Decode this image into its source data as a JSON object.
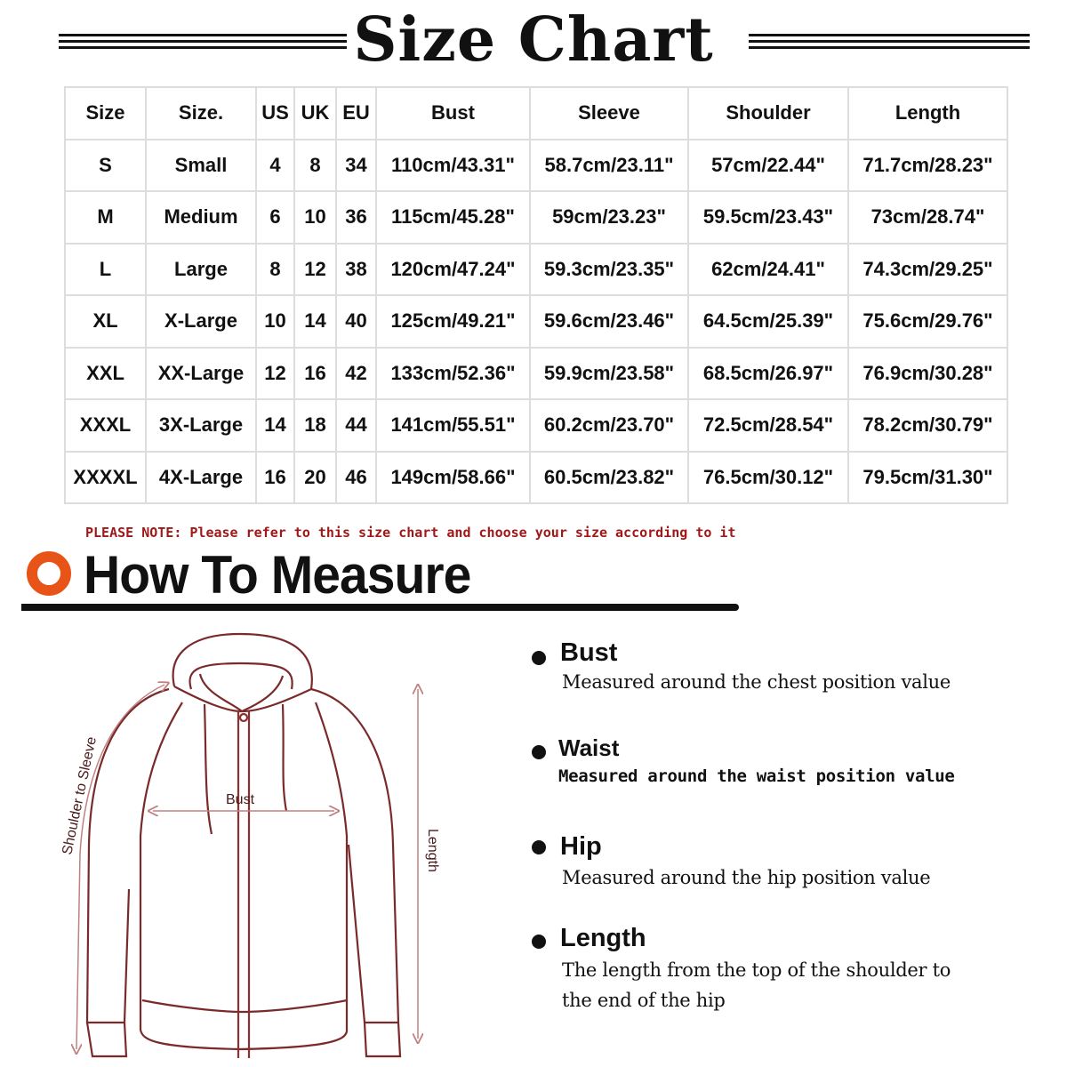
{
  "title": "Size Chart",
  "table": {
    "headers": [
      "Size",
      "Size.",
      "US",
      "UK",
      "EU",
      "Bust",
      "Sleeve",
      "Shoulder",
      "Length"
    ],
    "rows": [
      [
        "S",
        "Small",
        "4",
        "8",
        "34",
        "110cm/43.31\"",
        "58.7cm/23.11\"",
        "57cm/22.44\"",
        "71.7cm/28.23\""
      ],
      [
        "M",
        "Medium",
        "6",
        "10",
        "36",
        "115cm/45.28\"",
        "59cm/23.23\"",
        "59.5cm/23.43\"",
        "73cm/28.74\""
      ],
      [
        "L",
        "Large",
        "8",
        "12",
        "38",
        "120cm/47.24\"",
        "59.3cm/23.35\"",
        "62cm/24.41\"",
        "74.3cm/29.25\""
      ],
      [
        "XL",
        "X-Large",
        "10",
        "14",
        "40",
        "125cm/49.21\"",
        "59.6cm/23.46\"",
        "64.5cm/25.39\"",
        "75.6cm/29.76\""
      ],
      [
        "XXL",
        "XX-Large",
        "12",
        "16",
        "42",
        "133cm/52.36\"",
        "59.9cm/23.58\"",
        "68.5cm/26.97\"",
        "76.9cm/30.28\""
      ],
      [
        "XXXL",
        "3X-Large",
        "14",
        "18",
        "44",
        "141cm/55.51\"",
        "60.2cm/23.70\"",
        "72.5cm/28.54\"",
        "78.2cm/30.79\""
      ],
      [
        "XXXXL",
        "4X-Large",
        "16",
        "20",
        "46",
        "149cm/58.66\"",
        "60.5cm/23.82\"",
        "76.5cm/30.12\"",
        "79.5cm/31.30\""
      ]
    ]
  },
  "note": "PLEASE NOTE: Please refer to this size chart and choose your size according to it",
  "measure": {
    "heading": "How To Measure",
    "accent_color": "#e85418",
    "diagram": {
      "bust": "Bust",
      "shoulder_to_sleeve": "Shoulder to Sleeve",
      "length": "Length",
      "line_color": "#7a2a2a"
    },
    "items": [
      {
        "label": "Bust",
        "desc": "Measured around the chest position value"
      },
      {
        "label": "Waist",
        "desc": "Measured around the waist position value"
      },
      {
        "label": "Hip",
        "desc": "Measured around the  hip position value"
      },
      {
        "label": "Length",
        "desc": "The length from the top of the shoulder to",
        "desc2": "the end of the hip"
      }
    ]
  }
}
